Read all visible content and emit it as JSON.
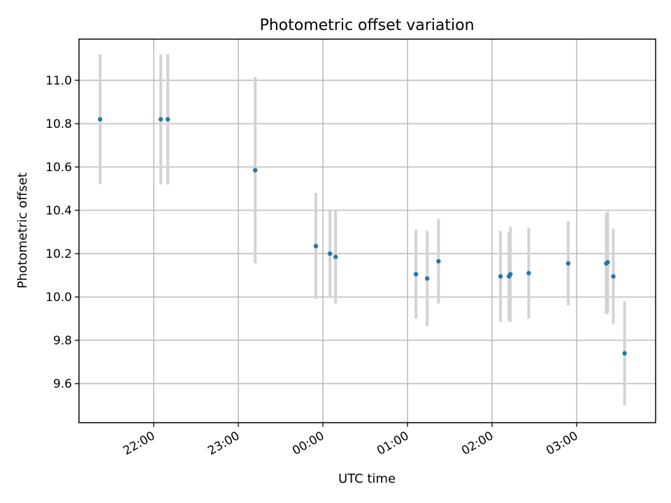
{
  "chart_data": {
    "type": "scatter",
    "title": "Photometric offset variation",
    "xlabel": "UTC time",
    "ylabel": "Photometric offset",
    "x_tick_labels": [
      "22:00",
      "23:00",
      "00:00",
      "01:00",
      "02:00",
      "03:00"
    ],
    "y_tick_labels": [
      "9.6",
      "9.8",
      "10.0",
      "10.2",
      "10.4",
      "10.6",
      "10.8",
      "11.0"
    ],
    "ylim": [
      9.42,
      11.19
    ],
    "xlim_minutes_since_midnight": [
      -173,
      236
    ],
    "grid": true,
    "errorbar_color": "#d3d3d3",
    "marker_color": "#1f77b4",
    "points": [
      {
        "x": "21:22",
        "y": 10.82,
        "yerr": 0.3
      },
      {
        "x": "22:05",
        "y": 10.82,
        "yerr": 0.3
      },
      {
        "x": "22:10",
        "y": 10.82,
        "yerr": 0.3
      },
      {
        "x": "23:12",
        "y": 10.585,
        "yerr": 0.43
      },
      {
        "x": "23:55",
        "y": 10.235,
        "yerr": 0.245
      },
      {
        "x": "00:05",
        "y": 10.2,
        "yerr": 0.2
      },
      {
        "x": "00:09",
        "y": 10.185,
        "yerr": 0.215
      },
      {
        "x": "01:06",
        "y": 10.105,
        "yerr": 0.205
      },
      {
        "x": "01:14",
        "y": 10.085,
        "yerr": 0.22
      },
      {
        "x": "01:22",
        "y": 10.165,
        "yerr": 0.195
      },
      {
        "x": "02:06",
        "y": 10.095,
        "yerr": 0.21
      },
      {
        "x": "02:12",
        "y": 10.095,
        "yerr": 0.205
      },
      {
        "x": "02:13",
        "y": 10.105,
        "yerr": 0.22
      },
      {
        "x": "02:26",
        "y": 10.11,
        "yerr": 0.21
      },
      {
        "x": "02:54",
        "y": 10.155,
        "yerr": 0.195
      },
      {
        "x": "03:21",
        "y": 10.155,
        "yerr": 0.235
      },
      {
        "x": "03:22",
        "y": 10.16,
        "yerr": 0.235
      },
      {
        "x": "03:26",
        "y": 10.095,
        "yerr": 0.22
      },
      {
        "x": "03:34",
        "y": 9.74,
        "yerr": 0.24
      }
    ]
  }
}
